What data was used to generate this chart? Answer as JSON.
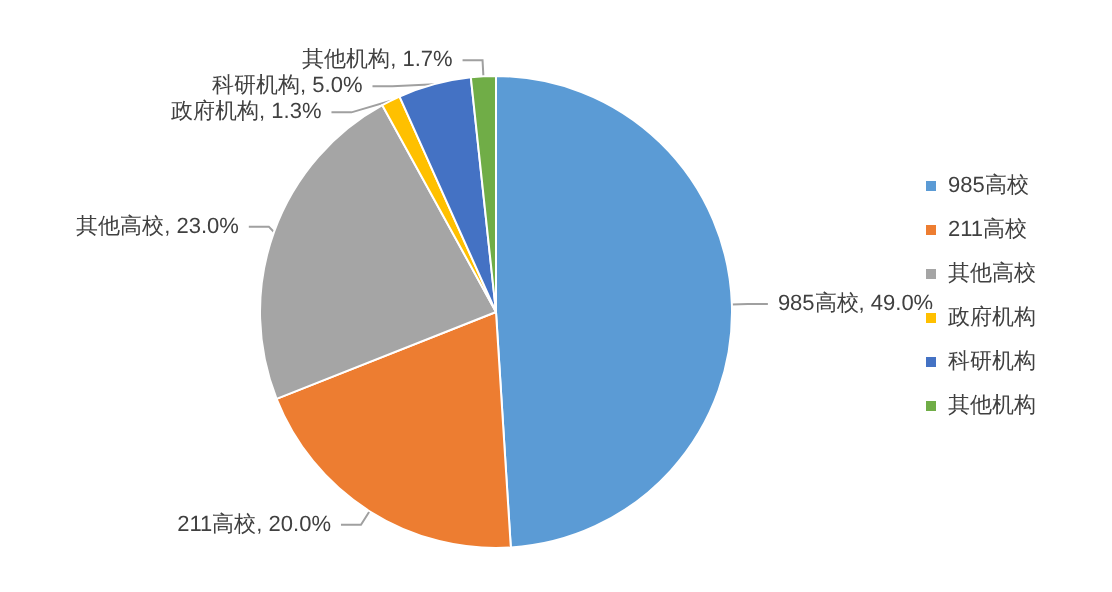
{
  "chart_data": {
    "type": "pie",
    "categories": [
      "985高校",
      "211高校",
      "其他高校",
      "政府机构",
      "科研机构",
      "其他机构"
    ],
    "values": [
      49.0,
      20.0,
      23.0,
      1.3,
      5.0,
      1.7
    ],
    "colors": [
      "#5b9bd5",
      "#ed7d31",
      "#a5a5a5",
      "#ffc000",
      "#4472c4",
      "#70ad47"
    ],
    "value_labels": [
      ", 49.0%",
      ", 20.0%",
      ", 23.0%",
      ", 1.3%",
      ", 5.0%",
      ", 1.7%"
    ],
    "legend": "right"
  }
}
